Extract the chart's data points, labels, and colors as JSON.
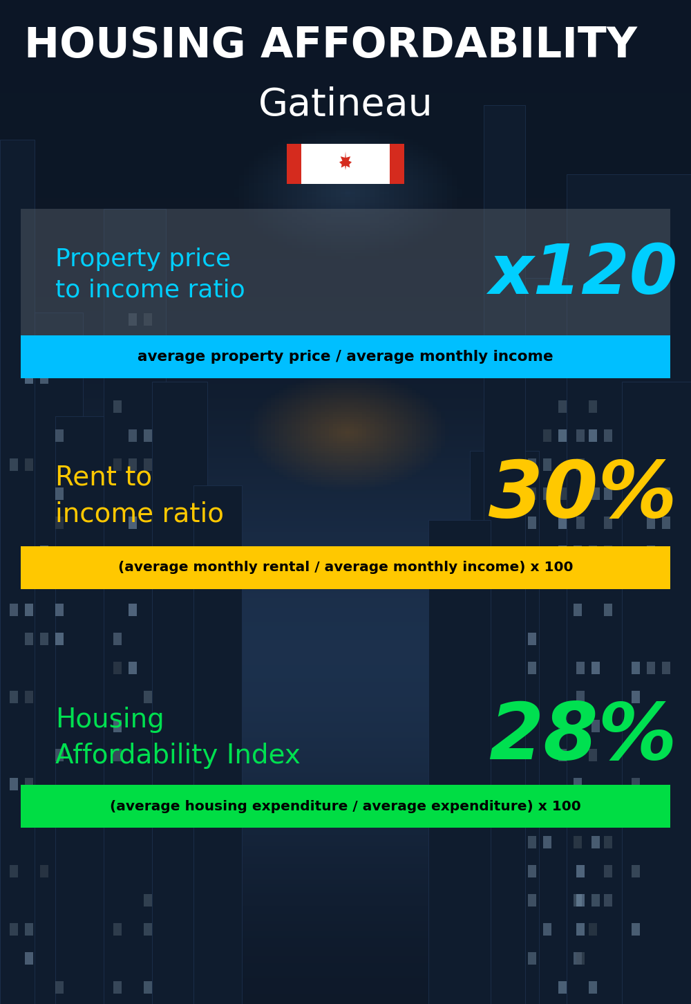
{
  "title_line1": "HOUSING AFFORDABILITY",
  "title_line2": "Gatineau",
  "bg_color": "#0d1b2a",
  "section1_label": "Property price\nto income ratio",
  "section1_value": "x120",
  "section1_label_color": "#00cfff",
  "section1_value_color": "#00cfff",
  "section1_banner_text": "average property price / average monthly income",
  "section1_banner_bg": "#00bfff",
  "section2_label": "Rent to\nincome ratio",
  "section2_value": "30%",
  "section2_label_color": "#ffc800",
  "section2_value_color": "#ffc800",
  "section2_banner_text": "(average monthly rental / average monthly income) x 100",
  "section2_banner_bg": "#ffc800",
  "section3_label": "Housing\nAffordability Index",
  "section3_value": "28%",
  "section3_label_color": "#00e050",
  "section3_value_color": "#00e050",
  "section3_banner_text": "(average housing expenditure / average expenditure) x 100",
  "section3_banner_bg": "#00dd44",
  "title_color": "#ffffff",
  "subtitle_color": "#ffffff",
  "banner_text_color": "#000000",
  "flag_red": "#d52b1e",
  "flag_white": "#ffffff"
}
